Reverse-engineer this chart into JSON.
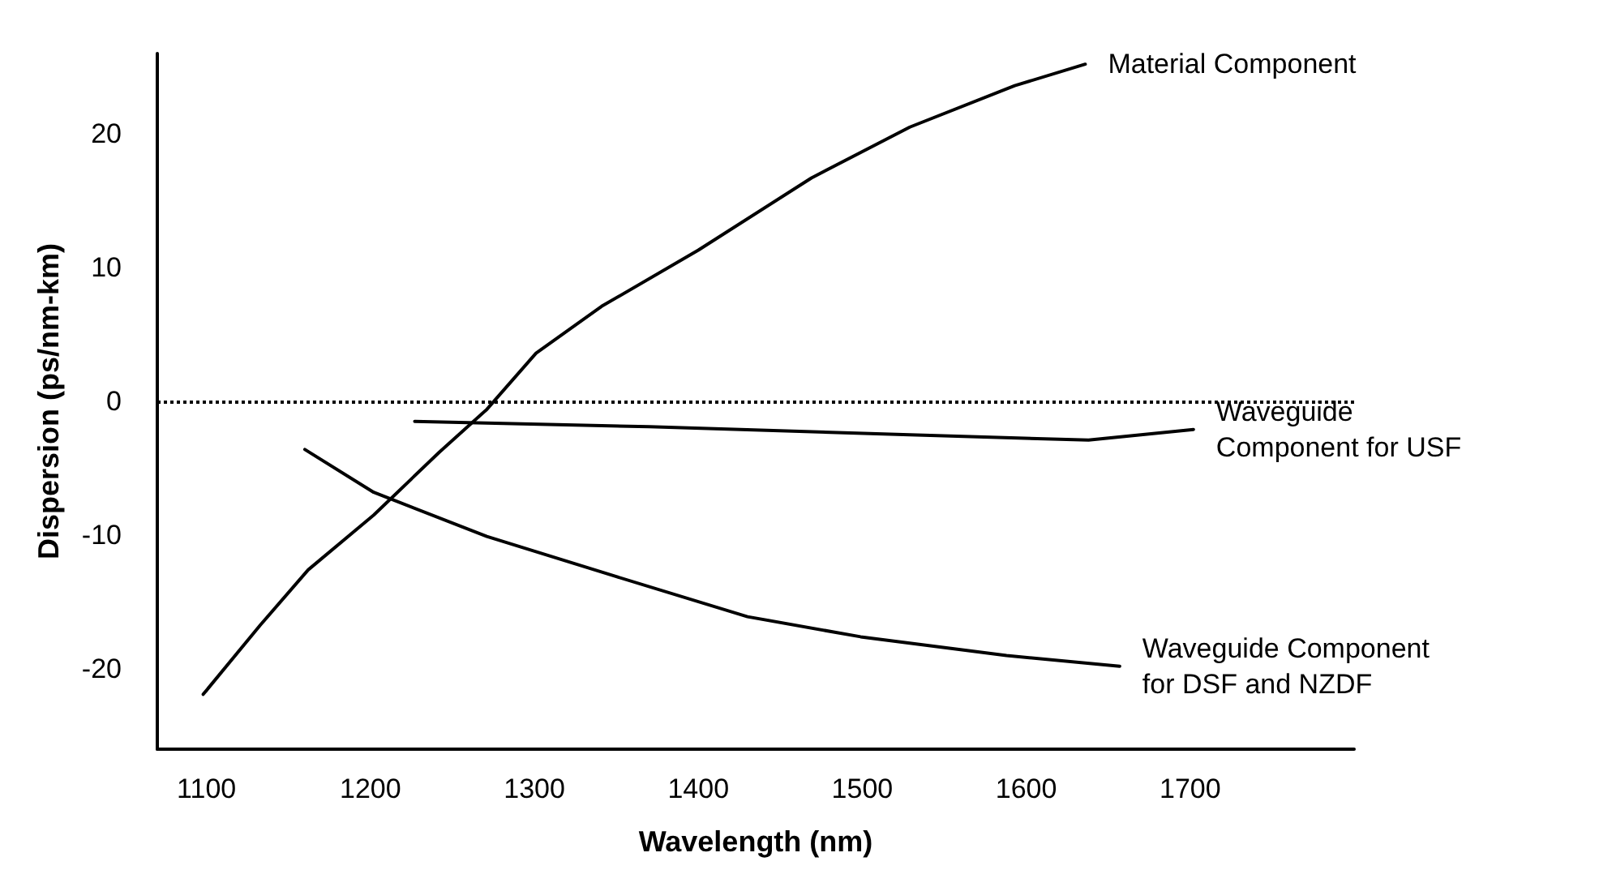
{
  "chart_data": {
    "type": "line",
    "xlabel": "Wavelength (nm)",
    "ylabel": "Dispersion (ps/nm-km)",
    "xlim": [
      1070,
      1800
    ],
    "xticks": [
      1100,
      1200,
      1300,
      1400,
      1500,
      1600,
      1700
    ],
    "ylim": [
      -26,
      26
    ],
    "yticks": [
      -20,
      -10,
      0,
      10,
      20
    ],
    "grid": false,
    "legend": false,
    "marker": "none",
    "line_style": "solid",
    "ref_lines": [
      {
        "axis": "y",
        "value": 0,
        "color": "#000000",
        "line_style": "dotted"
      }
    ],
    "series": [
      {
        "name": "Material Component",
        "color": "#000000",
        "x": [
          1098,
          1133,
          1162,
          1202,
          1242,
          1271,
          1301,
          1341,
          1400,
          1469,
          1529,
          1593,
          1636
        ],
        "values": [
          -21.9,
          -16.7,
          -12.6,
          -8.5,
          -3.8,
          -0.6,
          3.6,
          7.1,
          11.3,
          16.7,
          20.5,
          23.6,
          25.2
        ]
      },
      {
        "name": "Waveguide Component for USF",
        "color": "#000000",
        "x": [
          1227,
          1370,
          1529,
          1638,
          1702
        ],
        "values": [
          -1.5,
          -1.9,
          -2.5,
          -2.9,
          -2.1
        ]
      },
      {
        "name": "Waveguide Component for DSF and NZDF",
        "color": "#000000",
        "x": [
          1160,
          1202,
          1271,
          1350,
          1430,
          1499,
          1588,
          1657
        ],
        "values": [
          -3.6,
          -6.8,
          -10.1,
          -13.1,
          -16.1,
          -17.6,
          -19.0,
          -19.8
        ]
      }
    ]
  }
}
